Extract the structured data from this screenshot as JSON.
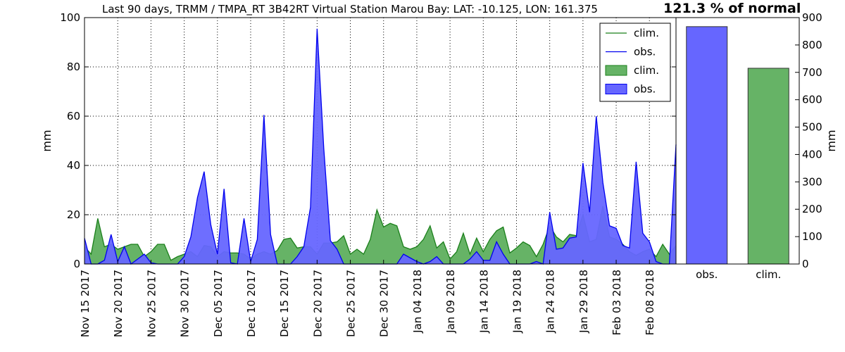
{
  "title": {
    "main": "Last 90 days, TRMM / TMPA_RT 3B42RT Virtual Station Marou Bay: LAT: -10.125, LON: 161.375",
    "highlight": "121.3 % of normal"
  },
  "colors": {
    "clim_line": "#1a7f1a",
    "clim_fill": "#66b366",
    "obs_line": "#0000ee",
    "obs_fill": "#6666ff",
    "grid": "#000000"
  },
  "chart_data": [
    {
      "type": "area",
      "ylabel": "mm",
      "ylim": [
        0,
        100
      ],
      "yticks": [
        "0",
        "20",
        "40",
        "60",
        "80",
        "100"
      ],
      "grid": true,
      "legend_position": "top-right",
      "legend": [
        "clim.",
        "obs.",
        "clim.",
        "obs."
      ],
      "x_tick_labels": [
        "Nov 15 2017",
        "Nov 20 2017",
        "Nov 25 2017",
        "Nov 30 2017",
        "Dec 05 2017",
        "Dec 10 2017",
        "Dec 15 2017",
        "Dec 20 2017",
        "Dec 25 2017",
        "Dec 30 2017",
        "Jan 04 2018",
        "Jan 09 2018",
        "Jan 14 2018",
        "Jan 19 2018",
        "Jan 24 2018",
        "Jan 29 2018",
        "Feb 03 2018",
        "Feb 08 2018"
      ],
      "x_range": [
        "2017-11-15",
        "2018-02-12"
      ],
      "series": [
        {
          "key": "clim",
          "points": [
            [
              "2017-11-15",
              7
            ],
            [
              "2017-11-16",
              4
            ],
            [
              "2017-11-17",
              18.5
            ],
            [
              "2017-11-18",
              7
            ],
            [
              "2017-11-19",
              8
            ],
            [
              "2017-11-20",
              6
            ],
            [
              "2017-11-21",
              7
            ],
            [
              "2017-11-22",
              8
            ],
            [
              "2017-11-23",
              8
            ],
            [
              "2017-11-24",
              3
            ],
            [
              "2017-11-25",
              5
            ],
            [
              "2017-11-26",
              8
            ],
            [
              "2017-11-27",
              8
            ],
            [
              "2017-11-28",
              1.5
            ],
            [
              "2017-11-29",
              3
            ],
            [
              "2017-11-30",
              4
            ],
            [
              "2017-12-01",
              5
            ],
            [
              "2017-12-02",
              3
            ],
            [
              "2017-12-03",
              7.5
            ],
            [
              "2017-12-04",
              7
            ],
            [
              "2017-12-05",
              3
            ],
            [
              "2017-12-06",
              5
            ],
            [
              "2017-12-07",
              4.5
            ],
            [
              "2017-12-08",
              4.5
            ],
            [
              "2017-12-09",
              4
            ],
            [
              "2017-12-10",
              2
            ],
            [
              "2017-12-11",
              4
            ],
            [
              "2017-12-12",
              5
            ],
            [
              "2017-12-13",
              4
            ],
            [
              "2017-12-14",
              5.5
            ],
            [
              "2017-12-15",
              10
            ],
            [
              "2017-12-16",
              10.5
            ],
            [
              "2017-12-17",
              6.5
            ],
            [
              "2017-12-18",
              7
            ],
            [
              "2017-12-19",
              7
            ],
            [
              "2017-12-20",
              4
            ],
            [
              "2017-12-21",
              8.5
            ],
            [
              "2017-12-22",
              8.5
            ],
            [
              "2017-12-23",
              9
            ],
            [
              "2017-12-24",
              11.5
            ],
            [
              "2017-12-25",
              4
            ],
            [
              "2017-12-26",
              6
            ],
            [
              "2017-12-27",
              4
            ],
            [
              "2017-12-28",
              10
            ],
            [
              "2017-12-29",
              22
            ],
            [
              "2017-12-30",
              15
            ],
            [
              "2017-12-31",
              16.5
            ],
            [
              "2018-01-01",
              15.5
            ],
            [
              "2018-01-02",
              7
            ],
            [
              "2018-01-03",
              6
            ],
            [
              "2018-01-04",
              7
            ],
            [
              "2018-01-05",
              10
            ],
            [
              "2018-01-06",
              15.5
            ],
            [
              "2018-01-07",
              6.5
            ],
            [
              "2018-01-08",
              9
            ],
            [
              "2018-01-09",
              2
            ],
            [
              "2018-01-10",
              5
            ],
            [
              "2018-01-11",
              12.5
            ],
            [
              "2018-01-12",
              4
            ],
            [
              "2018-01-13",
              10.5
            ],
            [
              "2018-01-14",
              5
            ],
            [
              "2018-01-15",
              10
            ],
            [
              "2018-01-16",
              13.5
            ],
            [
              "2018-01-17",
              15
            ],
            [
              "2018-01-18",
              4.5
            ],
            [
              "2018-01-19",
              6.5
            ],
            [
              "2018-01-20",
              9
            ],
            [
              "2018-01-21",
              7.5
            ],
            [
              "2018-01-22",
              3
            ],
            [
              "2018-01-23",
              8
            ],
            [
              "2018-01-24",
              15.5
            ],
            [
              "2018-01-25",
              11
            ],
            [
              "2018-01-26",
              9
            ],
            [
              "2018-01-27",
              12
            ],
            [
              "2018-01-28",
              11.5
            ],
            [
              "2018-01-29",
              20
            ],
            [
              "2018-01-30",
              9
            ],
            [
              "2018-01-31",
              10
            ],
            [
              "2018-02-01",
              23.5
            ],
            [
              "2018-02-02",
              11
            ],
            [
              "2018-02-03",
              10
            ],
            [
              "2018-02-04",
              8
            ],
            [
              "2018-02-05",
              5
            ],
            [
              "2018-02-06",
              3.5
            ],
            [
              "2018-02-07",
              5
            ],
            [
              "2018-02-08",
              6
            ],
            [
              "2018-02-09",
              3
            ],
            [
              "2018-02-10",
              8
            ],
            [
              "2018-02-11",
              4
            ],
            [
              "2018-02-12",
              7.5
            ]
          ]
        },
        {
          "key": "obs",
          "points": [
            [
              "2017-11-15",
              10.5
            ],
            [
              "2017-11-16",
              0
            ],
            [
              "2017-11-17",
              0
            ],
            [
              "2017-11-18",
              1.5
            ],
            [
              "2017-11-19",
              12
            ],
            [
              "2017-11-20",
              1
            ],
            [
              "2017-11-21",
              7
            ],
            [
              "2017-11-22",
              0
            ],
            [
              "2017-11-23",
              2
            ],
            [
              "2017-11-24",
              4
            ],
            [
              "2017-11-25",
              0.5
            ],
            [
              "2017-11-26",
              0
            ],
            [
              "2017-11-27",
              0
            ],
            [
              "2017-11-28",
              0
            ],
            [
              "2017-11-29",
              0
            ],
            [
              "2017-11-30",
              3
            ],
            [
              "2017-12-01",
              11
            ],
            [
              "2017-12-02",
              27
            ],
            [
              "2017-12-03",
              37.5
            ],
            [
              "2017-12-04",
              16
            ],
            [
              "2017-12-05",
              4
            ],
            [
              "2017-12-06",
              30.5
            ],
            [
              "2017-12-07",
              0.5
            ],
            [
              "2017-12-08",
              0
            ],
            [
              "2017-12-09",
              18.5
            ],
            [
              "2017-12-10",
              1
            ],
            [
              "2017-12-11",
              10
            ],
            [
              "2017-12-12",
              60.5
            ],
            [
              "2017-12-13",
              12
            ],
            [
              "2017-12-14",
              0
            ],
            [
              "2017-12-15",
              0
            ],
            [
              "2017-12-16",
              0
            ],
            [
              "2017-12-17",
              3
            ],
            [
              "2017-12-18",
              7
            ],
            [
              "2017-12-19",
              23
            ],
            [
              "2017-12-20",
              95.5
            ],
            [
              "2017-12-21",
              47
            ],
            [
              "2017-12-22",
              9.5
            ],
            [
              "2017-12-23",
              6
            ],
            [
              "2017-12-24",
              0
            ],
            [
              "2017-12-25",
              0
            ],
            [
              "2017-12-26",
              0
            ],
            [
              "2017-12-27",
              0
            ],
            [
              "2017-12-28",
              0
            ],
            [
              "2017-12-29",
              0
            ],
            [
              "2017-12-30",
              0
            ],
            [
              "2017-12-31",
              0
            ],
            [
              "2018-01-01",
              0
            ],
            [
              "2018-01-02",
              4
            ],
            [
              "2018-01-03",
              2.5
            ],
            [
              "2018-01-04",
              1
            ],
            [
              "2018-01-05",
              0
            ],
            [
              "2018-01-06",
              1
            ],
            [
              "2018-01-07",
              3
            ],
            [
              "2018-01-08",
              0
            ],
            [
              "2018-01-09",
              0
            ],
            [
              "2018-01-10",
              0
            ],
            [
              "2018-01-11",
              0
            ],
            [
              "2018-01-12",
              2
            ],
            [
              "2018-01-13",
              5
            ],
            [
              "2018-01-14",
              1.5
            ],
            [
              "2018-01-15",
              1.5
            ],
            [
              "2018-01-16",
              9
            ],
            [
              "2018-01-17",
              4
            ],
            [
              "2018-01-18",
              0
            ],
            [
              "2018-01-19",
              0
            ],
            [
              "2018-01-20",
              0
            ],
            [
              "2018-01-21",
              0
            ],
            [
              "2018-01-22",
              1
            ],
            [
              "2018-01-23",
              0
            ],
            [
              "2018-01-24",
              21
            ],
            [
              "2018-01-25",
              6
            ],
            [
              "2018-01-26",
              6.5
            ],
            [
              "2018-01-27",
              10.5
            ],
            [
              "2018-01-28",
              11
            ],
            [
              "2018-01-29",
              41
            ],
            [
              "2018-01-30",
              21
            ],
            [
              "2018-01-31",
              60
            ],
            [
              "2018-02-01",
              33
            ],
            [
              "2018-02-02",
              15.5
            ],
            [
              "2018-02-03",
              14.5
            ],
            [
              "2018-02-04",
              7.5
            ],
            [
              "2018-02-05",
              6.5
            ],
            [
              "2018-02-06",
              41.5
            ],
            [
              "2018-02-07",
              12.5
            ],
            [
              "2018-02-08",
              9
            ],
            [
              "2018-02-09",
              1
            ],
            [
              "2018-02-10",
              0
            ],
            [
              "2018-02-11",
              0
            ],
            [
              "2018-02-12",
              48.5
            ]
          ]
        }
      ]
    },
    {
      "type": "bar",
      "ylabel": "mm",
      "ylim": [
        0,
        900
      ],
      "yticks": [
        "0",
        "100",
        "200",
        "300",
        "400",
        "500",
        "600",
        "700",
        "800",
        "900"
      ],
      "categories": [
        "obs.",
        "clim."
      ],
      "values": [
        867,
        715
      ]
    }
  ]
}
